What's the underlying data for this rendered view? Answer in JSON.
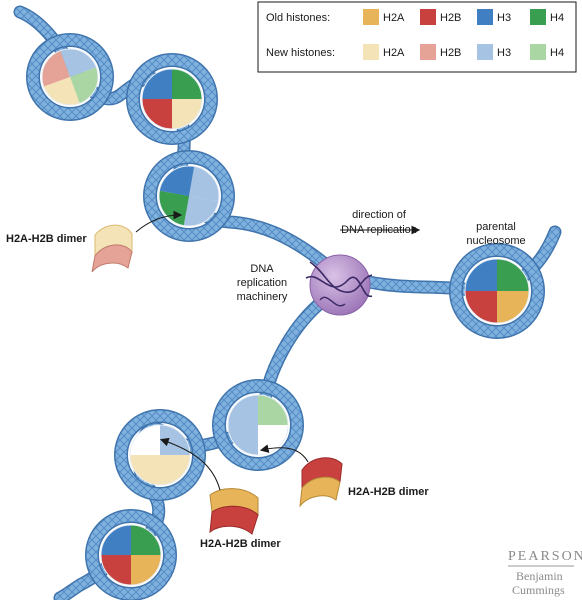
{
  "legend": {
    "old_label": "Old histones:",
    "new_label": "New histones:",
    "old_items": [
      {
        "name": "H2A",
        "color": "#e8b45a"
      },
      {
        "name": "H2B",
        "color": "#c8413f"
      },
      {
        "name": "H3",
        "color": "#3f7fc2"
      },
      {
        "name": "H4",
        "color": "#3a9e50"
      }
    ],
    "new_items": [
      {
        "name": "H2A",
        "color": "#f5e3b8"
      },
      {
        "name": "H2B",
        "color": "#e5a397"
      },
      {
        "name": "H3",
        "color": "#a6c3e3"
      },
      {
        "name": "H4",
        "color": "#a9d6a3"
      }
    ]
  },
  "labels": {
    "direction_line1": "direction of",
    "direction_line2": "DNA replication",
    "machinery_line1": "DNA",
    "machinery_line2": "replication",
    "machinery_line3": "machinery",
    "parental_line1": "parental",
    "parental_line2": "nucleosome",
    "dimer_left": "H2A-H2B dimer",
    "dimer_bottom_right": "H2A-H2B dimer",
    "dimer_bottom": "H2A-H2B dimer"
  },
  "publisher": {
    "name": "PEARSON",
    "imprint_line1": "Benjamin",
    "imprint_line2": "Cummings"
  }
}
